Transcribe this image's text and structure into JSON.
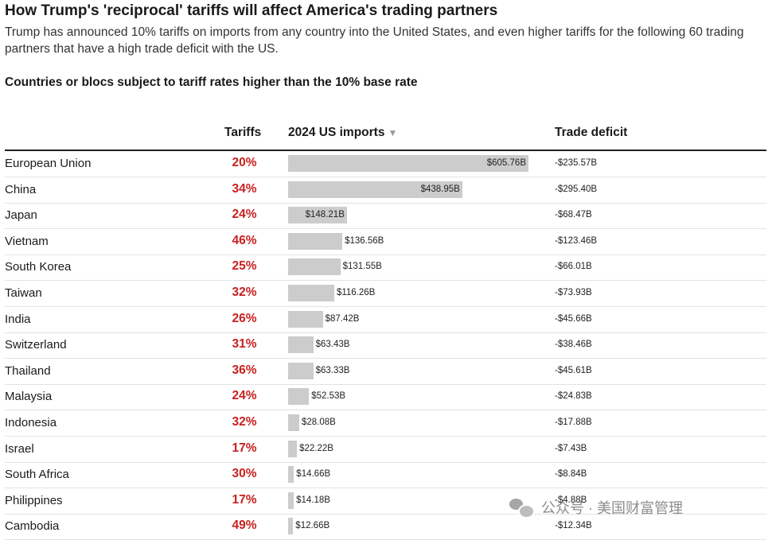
{
  "header": {
    "title": "How Trump's 'reciprocal' tariffs will affect America's trading partners",
    "subtitle": "Trump has announced 10% tariffs on imports from any country into the United States, and even higher tariffs for the following 60 trading partners that have a high trade deficit with the US.",
    "section_heading": "Countries or blocs subject to tariff rates higher than the 10% base rate"
  },
  "columns": {
    "tariffs": "Tariffs",
    "imports": "2024 US imports",
    "imports_sort_icon": "sort-down-arrow-icon",
    "deficit": "Trade deficit"
  },
  "watermark": {
    "text": "公众号 · 美国财富管理",
    "icon": "wechat-icon"
  },
  "colors": {
    "tariff_text": "#c8201f",
    "bar_fill": "#cccccc",
    "row_divider": "#e2e2e2"
  },
  "chart_data": {
    "type": "table",
    "columns": [
      "Tariffs",
      "2024 US imports",
      "Trade deficit"
    ],
    "rows": [
      {
        "country": "European Union",
        "tariff": "20%",
        "imports": 605.76,
        "imports_label": "$605.76B",
        "deficit_label": "-$235.57B"
      },
      {
        "country": "China",
        "tariff": "34%",
        "imports": 438.95,
        "imports_label": "$438.95B",
        "deficit_label": "-$295.40B"
      },
      {
        "country": "Japan",
        "tariff": "24%",
        "imports": 148.21,
        "imports_label": "$148.21B",
        "deficit_label": "-$68.47B"
      },
      {
        "country": "Vietnam",
        "tariff": "46%",
        "imports": 136.56,
        "imports_label": "$136.56B",
        "deficit_label": "-$123.46B"
      },
      {
        "country": "South Korea",
        "tariff": "25%",
        "imports": 131.55,
        "imports_label": "$131.55B",
        "deficit_label": "-$66.01B"
      },
      {
        "country": "Taiwan",
        "tariff": "32%",
        "imports": 116.26,
        "imports_label": "$116.26B",
        "deficit_label": "-$73.93B"
      },
      {
        "country": "India",
        "tariff": "26%",
        "imports": 87.42,
        "imports_label": "$87.42B",
        "deficit_label": "-$45.66B"
      },
      {
        "country": "Switzerland",
        "tariff": "31%",
        "imports": 63.43,
        "imports_label": "$63.43B",
        "deficit_label": "-$38.46B"
      },
      {
        "country": "Thailand",
        "tariff": "36%",
        "imports": 63.33,
        "imports_label": "$63.33B",
        "deficit_label": "-$45.61B"
      },
      {
        "country": "Malaysia",
        "tariff": "24%",
        "imports": 52.53,
        "imports_label": "$52.53B",
        "deficit_label": "-$24.83B"
      },
      {
        "country": "Indonesia",
        "tariff": "32%",
        "imports": 28.08,
        "imports_label": "$28.08B",
        "deficit_label": "-$17.88B"
      },
      {
        "country": "Israel",
        "tariff": "17%",
        "imports": 22.22,
        "imports_label": "$22.22B",
        "deficit_label": "-$7.43B"
      },
      {
        "country": "South Africa",
        "tariff": "30%",
        "imports": 14.66,
        "imports_label": "$14.66B",
        "deficit_label": "-$8.84B"
      },
      {
        "country": "Philippines",
        "tariff": "17%",
        "imports": 14.18,
        "imports_label": "$14.18B",
        "deficit_label": "-$4.88B"
      },
      {
        "country": "Cambodia",
        "tariff": "49%",
        "imports": 12.66,
        "imports_label": "$12.66B",
        "deficit_label": "-$12.34B"
      }
    ]
  }
}
